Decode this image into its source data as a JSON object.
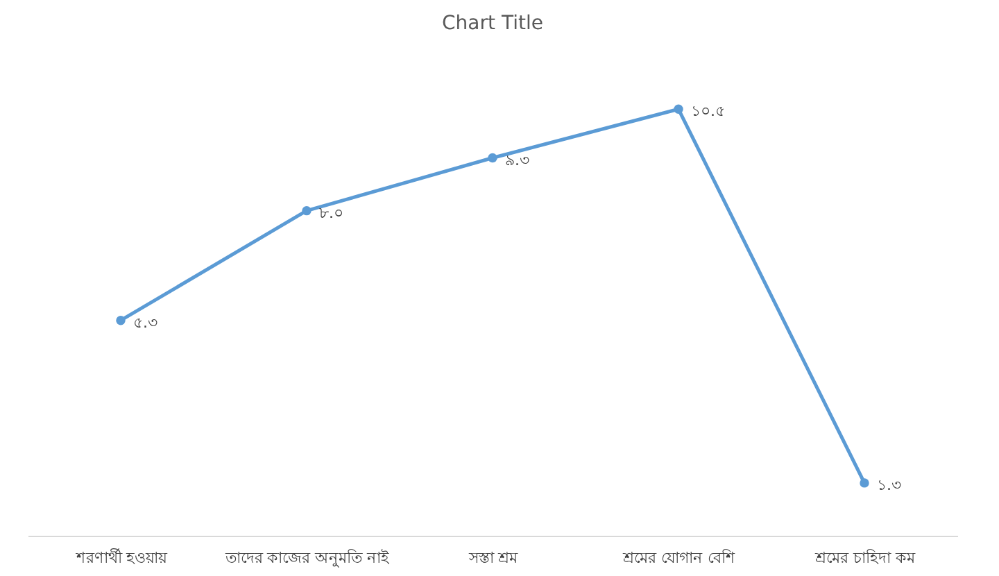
{
  "chart_data": {
    "type": "line",
    "title": "Chart Title",
    "categories": [
      "শরণার্থী হওয়ায়",
      "তাদের কাজের অনুমতি নাই",
      "সস্তা শ্রম",
      "শ্রমের যোগান বেশি",
      "শ্রমের চাহিদা কম"
    ],
    "series": [
      {
        "color": "#5b9bd5",
        "values": [
          5.3,
          8.0,
          9.3,
          10.5,
          1.3
        ],
        "value_labels": [
          "৫.৩",
          "৮.০",
          "৯.৩",
          "১০.৫",
          "১.৩"
        ]
      }
    ],
    "marker": "circle",
    "grid": false,
    "legend": false
  }
}
